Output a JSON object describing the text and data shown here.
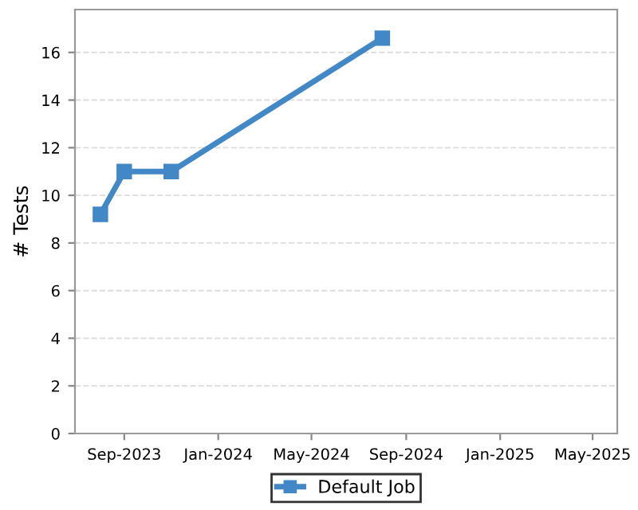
{
  "chart_data": {
    "type": "line",
    "ylabel": "# Tests",
    "x": [
      "2023-08-01",
      "2023-09-01",
      "2023-11-01",
      "2024-08-01"
    ],
    "series": [
      {
        "name": "Default Job",
        "color": "#4287c6",
        "values": [
          9.2,
          11,
          11,
          16.6
        ]
      }
    ],
    "xlim": [
      "2023-06-29",
      "2025-06-02"
    ],
    "xticks": [
      {
        "value": "2023-09-01",
        "label": "Sep-2023"
      },
      {
        "value": "2024-01-01",
        "label": "Jan-2024"
      },
      {
        "value": "2024-05-01",
        "label": "May-2024"
      },
      {
        "value": "2024-09-01",
        "label": "Sep-2024"
      },
      {
        "value": "2025-01-01",
        "label": "Jan-2025"
      },
      {
        "value": "2025-05-01",
        "label": "May-2025"
      }
    ],
    "ylim": [
      0,
      17.8
    ],
    "yticks": [
      0,
      2,
      4,
      6,
      8,
      10,
      12,
      14,
      16
    ],
    "grid": "y",
    "legend": "bottom",
    "marker": "square",
    "line_style": "solid"
  }
}
